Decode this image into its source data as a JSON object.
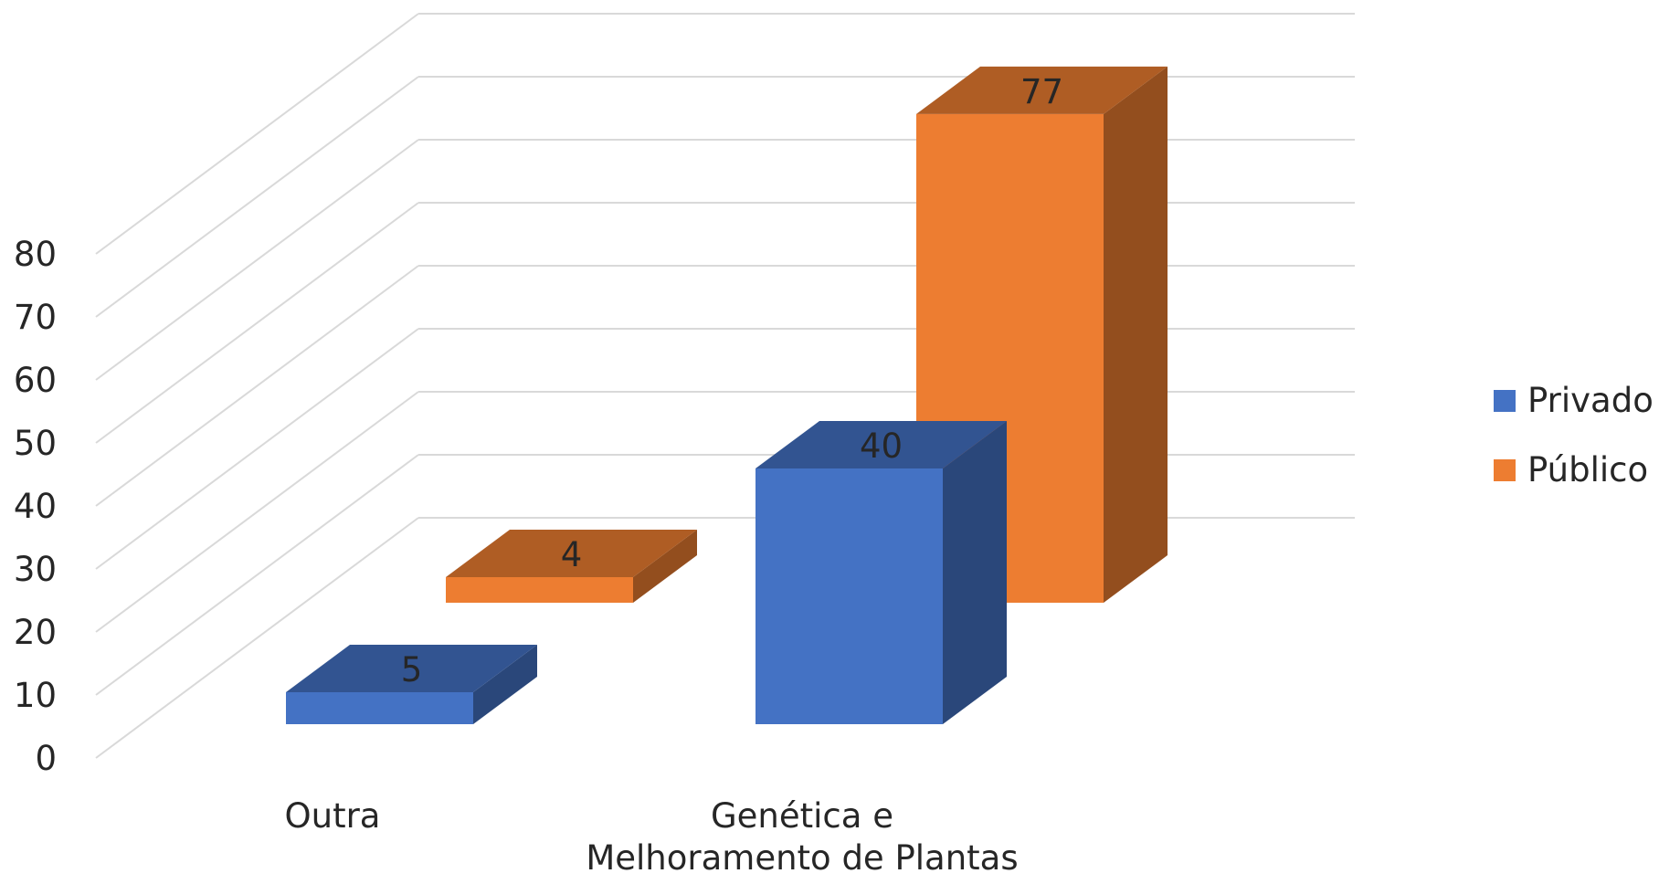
{
  "chart_data": {
    "type": "bar",
    "subtype": "3d-clustered-column",
    "title": "",
    "xlabel": "",
    "ylabel": "",
    "categories": [
      "Outra",
      "Genética e Melhoramento de Plantas"
    ],
    "category_lines": [
      [
        "Outra"
      ],
      [
        "Genética e",
        "Melhoramento de Plantas"
      ]
    ],
    "series": [
      {
        "name": "Privado",
        "values": [
          5,
          40
        ],
        "color": "#4472C4"
      },
      {
        "name": "Público",
        "values": [
          4,
          77
        ],
        "color": "#ED7D31"
      }
    ],
    "ylim": [
      0,
      80
    ],
    "yticks": [
      "0",
      "10",
      "20",
      "30",
      "40",
      "50",
      "60",
      "70",
      "80"
    ],
    "grid": true,
    "legend_position": "right",
    "data_labels": true
  }
}
